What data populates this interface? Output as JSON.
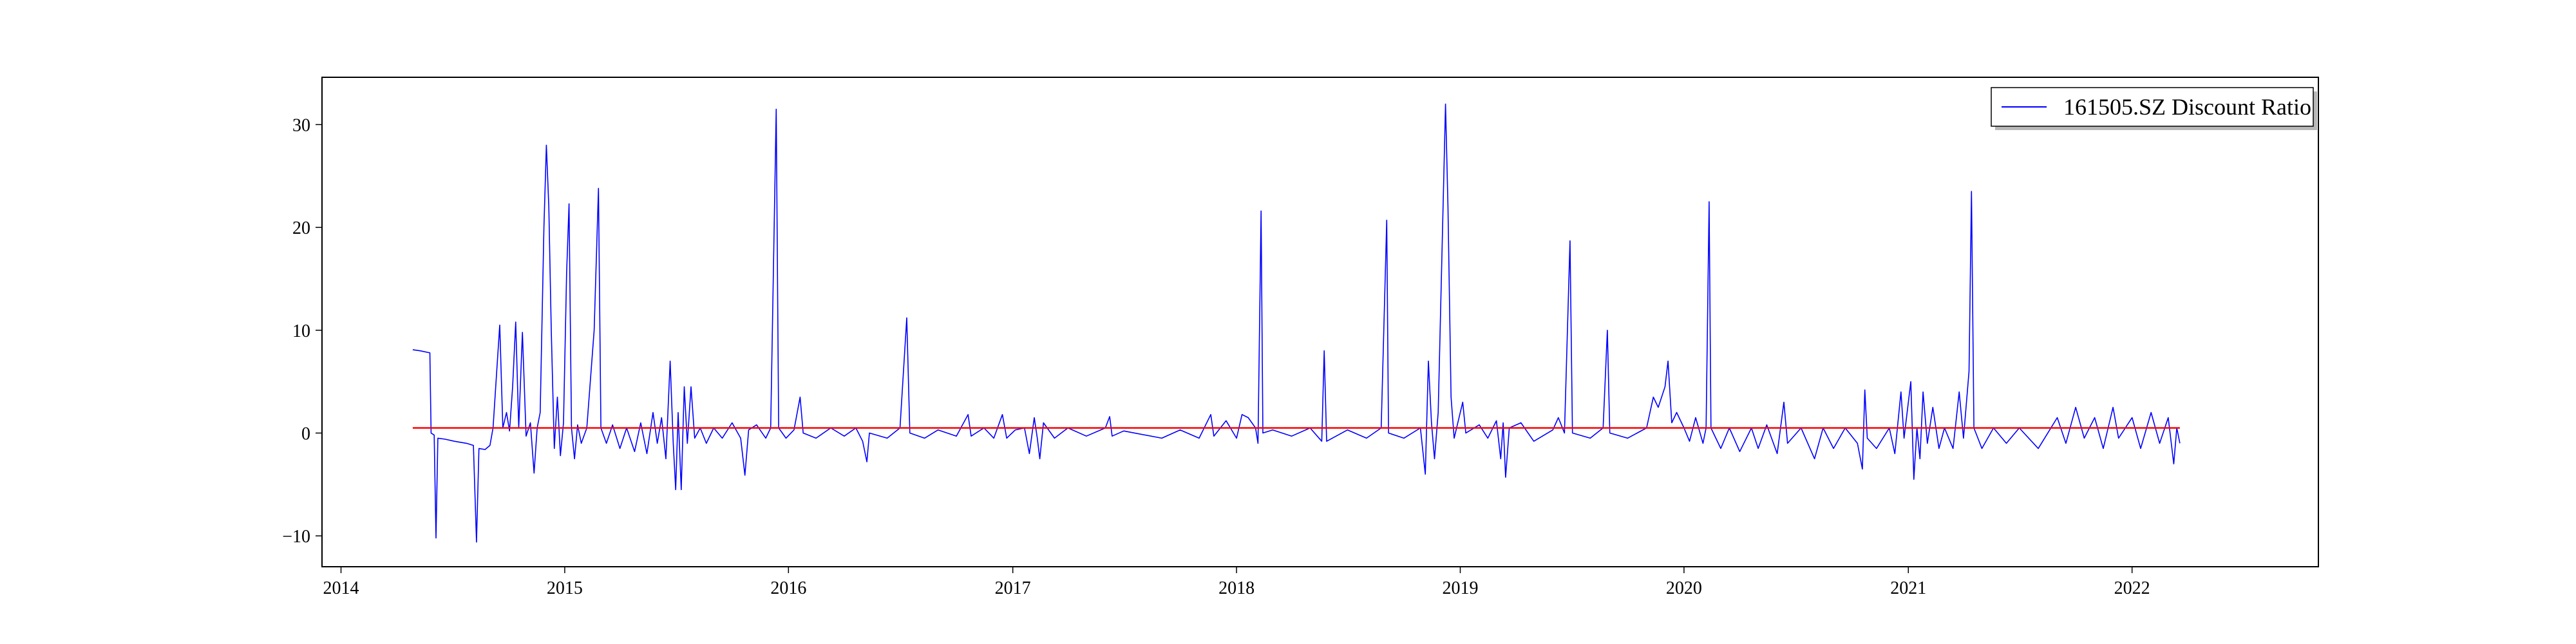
{
  "chart_data": {
    "type": "line",
    "title": "",
    "xlabel": "",
    "ylabel": "",
    "xlim": [
      "2013-12-01",
      "2022-11-01"
    ],
    "ylim": [
      -13,
      34.6
    ],
    "x_ticks": [
      "2014",
      "2015",
      "2016",
      "2017",
      "2018",
      "2019",
      "2020",
      "2021",
      "2022"
    ],
    "y_ticks": [
      -10,
      0,
      10,
      20,
      30
    ],
    "grid": false,
    "legend_position": "top-right",
    "series": [
      {
        "name": "161505.SZ Discount Ratio",
        "color": "#0000ff",
        "points": [
          [
            "2014-04-28",
            8.1
          ],
          [
            "2014-05-10",
            8.0
          ],
          [
            "2014-05-26",
            7.8
          ],
          [
            "2014-05-28",
            0.0
          ],
          [
            "2014-06-02",
            -0.2
          ],
          [
            "2014-06-05",
            -10.2
          ],
          [
            "2014-06-08",
            -0.5
          ],
          [
            "2014-06-20",
            -0.6
          ],
          [
            "2014-07-05",
            -0.8
          ],
          [
            "2014-07-25",
            -1.0
          ],
          [
            "2014-08-05",
            -1.2
          ],
          [
            "2014-08-10",
            -10.6
          ],
          [
            "2014-08-14",
            -1.5
          ],
          [
            "2014-08-24",
            -1.6
          ],
          [
            "2014-09-01",
            -1.2
          ],
          [
            "2014-09-06",
            0.5
          ],
          [
            "2014-09-12",
            6.0
          ],
          [
            "2014-09-17",
            10.5
          ],
          [
            "2014-09-22",
            0.5
          ],
          [
            "2014-09-28",
            2.0
          ],
          [
            "2014-10-03",
            0.2
          ],
          [
            "2014-10-08",
            4.5
          ],
          [
            "2014-10-13",
            10.8
          ],
          [
            "2014-10-18",
            0.5
          ],
          [
            "2014-10-24",
            9.8
          ],
          [
            "2014-10-30",
            -0.3
          ],
          [
            "2014-11-06",
            1.0
          ],
          [
            "2014-11-12",
            -3.9
          ],
          [
            "2014-11-17",
            0.5
          ],
          [
            "2014-11-22",
            2.0
          ],
          [
            "2014-11-28",
            20.0
          ],
          [
            "2014-12-02",
            28.0
          ],
          [
            "2014-12-06",
            22.0
          ],
          [
            "2014-12-10",
            10.0
          ],
          [
            "2014-12-15",
            -1.5
          ],
          [
            "2014-12-20",
            3.5
          ],
          [
            "2014-12-25",
            -2.2
          ],
          [
            "2014-12-30",
            1.0
          ],
          [
            "2015-01-04",
            15.5
          ],
          [
            "2015-01-08",
            22.3
          ],
          [
            "2015-01-12",
            0.5
          ],
          [
            "2015-01-17",
            -2.5
          ],
          [
            "2015-01-22",
            0.8
          ],
          [
            "2015-01-28",
            -1.0
          ],
          [
            "2015-02-06",
            0.5
          ],
          [
            "2015-02-18",
            10.0
          ],
          [
            "2015-02-25",
            23.8
          ],
          [
            "2015-03-01",
            0.5
          ],
          [
            "2015-03-10",
            -1.0
          ],
          [
            "2015-03-20",
            0.8
          ],
          [
            "2015-04-01",
            -1.5
          ],
          [
            "2015-04-12",
            0.5
          ],
          [
            "2015-04-25",
            -1.8
          ],
          [
            "2015-05-05",
            1.0
          ],
          [
            "2015-05-15",
            -2.0
          ],
          [
            "2015-05-25",
            2.0
          ],
          [
            "2015-06-01",
            -1.0
          ],
          [
            "2015-06-08",
            1.5
          ],
          [
            "2015-06-15",
            -2.5
          ],
          [
            "2015-06-22",
            7.0
          ],
          [
            "2015-06-27",
            -1.0
          ],
          [
            "2015-07-01",
            -5.5
          ],
          [
            "2015-07-05",
            2.0
          ],
          [
            "2015-07-10",
            -5.5
          ],
          [
            "2015-07-15",
            4.5
          ],
          [
            "2015-07-20",
            -1.0
          ],
          [
            "2015-07-26",
            4.5
          ],
          [
            "2015-08-01",
            -0.5
          ],
          [
            "2015-08-10",
            0.5
          ],
          [
            "2015-08-20",
            -1.0
          ],
          [
            "2015-09-01",
            0.5
          ],
          [
            "2015-09-15",
            -0.5
          ],
          [
            "2015-10-01",
            1.0
          ],
          [
            "2015-10-15",
            -0.5
          ],
          [
            "2015-10-22",
            -4.1
          ],
          [
            "2015-10-28",
            0.3
          ],
          [
            "2015-11-10",
            0.8
          ],
          [
            "2015-11-25",
            -0.5
          ],
          [
            "2015-12-03",
            0.5
          ],
          [
            "2015-12-12",
            31.5
          ],
          [
            "2015-12-16",
            0.5
          ],
          [
            "2015-12-28",
            -0.5
          ],
          [
            "2016-01-10",
            0.3
          ],
          [
            "2016-01-20",
            3.5
          ],
          [
            "2016-01-25",
            0.0
          ],
          [
            "2016-02-15",
            -0.5
          ],
          [
            "2016-03-10",
            0.5
          ],
          [
            "2016-04-01",
            -0.3
          ],
          [
            "2016-04-20",
            0.5
          ],
          [
            "2016-05-01",
            -0.8
          ],
          [
            "2016-05-08",
            -2.8
          ],
          [
            "2016-05-12",
            0.0
          ],
          [
            "2016-06-10",
            -0.5
          ],
          [
            "2016-07-01",
            0.5
          ],
          [
            "2016-07-12",
            11.2
          ],
          [
            "2016-07-17",
            0.0
          ],
          [
            "2016-08-10",
            -0.5
          ],
          [
            "2016-09-01",
            0.3
          ],
          [
            "2016-10-01",
            -0.3
          ],
          [
            "2016-10-20",
            1.8
          ],
          [
            "2016-10-25",
            -0.3
          ],
          [
            "2016-11-15",
            0.5
          ],
          [
            "2016-12-01",
            -0.5
          ],
          [
            "2016-12-15",
            1.8
          ],
          [
            "2016-12-22",
            -0.5
          ],
          [
            "2017-01-05",
            0.3
          ],
          [
            "2017-01-20",
            0.5
          ],
          [
            "2017-01-28",
            -2.0
          ],
          [
            "2017-02-05",
            1.5
          ],
          [
            "2017-02-10",
            -0.5
          ],
          [
            "2017-02-14",
            -2.5
          ],
          [
            "2017-02-20",
            1.0
          ],
          [
            "2017-03-10",
            -0.5
          ],
          [
            "2017-04-01",
            0.5
          ],
          [
            "2017-05-01",
            -0.3
          ],
          [
            "2017-06-01",
            0.5
          ],
          [
            "2017-06-08",
            1.6
          ],
          [
            "2017-06-12",
            -0.3
          ],
          [
            "2017-07-01",
            0.2
          ],
          [
            "2017-09-01",
            -0.5
          ],
          [
            "2017-10-01",
            0.3
          ],
          [
            "2017-11-01",
            -0.5
          ],
          [
            "2017-11-20",
            1.8
          ],
          [
            "2017-11-25",
            -0.3
          ],
          [
            "2017-12-15",
            1.2
          ],
          [
            "2018-01-01",
            -0.5
          ],
          [
            "2018-01-10",
            1.8
          ],
          [
            "2018-01-20",
            1.5
          ],
          [
            "2018-02-01",
            0.5
          ],
          [
            "2018-02-05",
            -1.0
          ],
          [
            "2018-02-10",
            21.6
          ],
          [
            "2018-02-13",
            0.0
          ],
          [
            "2018-03-01",
            0.3
          ],
          [
            "2018-04-01",
            -0.3
          ],
          [
            "2018-05-01",
            0.5
          ],
          [
            "2018-05-20",
            -0.8
          ],
          [
            "2018-05-24",
            8.0
          ],
          [
            "2018-05-28",
            -0.8
          ],
          [
            "2018-07-01",
            0.3
          ],
          [
            "2018-08-01",
            -0.5
          ],
          [
            "2018-08-25",
            0.5
          ],
          [
            "2018-09-03",
            20.7
          ],
          [
            "2018-09-06",
            0.0
          ],
          [
            "2018-10-01",
            -0.5
          ],
          [
            "2018-10-28",
            0.5
          ],
          [
            "2018-11-05",
            -4.0
          ],
          [
            "2018-11-10",
            7.0
          ],
          [
            "2018-11-15",
            1.0
          ],
          [
            "2018-11-20",
            -2.5
          ],
          [
            "2018-11-26",
            2.0
          ],
          [
            "2018-12-08",
            32.0
          ],
          [
            "2018-12-12",
            22.0
          ],
          [
            "2018-12-17",
            3.5
          ],
          [
            "2018-12-22",
            -0.5
          ],
          [
            "2019-01-05",
            3.0
          ],
          [
            "2019-01-10",
            0.0
          ],
          [
            "2019-02-01",
            0.8
          ],
          [
            "2019-02-15",
            -0.5
          ],
          [
            "2019-03-01",
            1.2
          ],
          [
            "2019-03-08",
            -2.5
          ],
          [
            "2019-03-12",
            1.0
          ],
          [
            "2019-03-16",
            -4.3
          ],
          [
            "2019-03-22",
            0.5
          ],
          [
            "2019-04-10",
            1.0
          ],
          [
            "2019-05-01",
            -0.8
          ],
          [
            "2019-06-01",
            0.3
          ],
          [
            "2019-06-10",
            1.5
          ],
          [
            "2019-06-20",
            0.0
          ],
          [
            "2019-06-29",
            18.7
          ],
          [
            "2019-07-03",
            0.0
          ],
          [
            "2019-08-01",
            -0.5
          ],
          [
            "2019-08-22",
            0.5
          ],
          [
            "2019-08-29",
            10.0
          ],
          [
            "2019-09-02",
            0.0
          ],
          [
            "2019-10-01",
            -0.5
          ],
          [
            "2019-11-01",
            0.5
          ],
          [
            "2019-11-12",
            3.5
          ],
          [
            "2019-11-20",
            2.5
          ],
          [
            "2019-12-01",
            4.5
          ],
          [
            "2019-12-06",
            7.0
          ],
          [
            "2019-12-12",
            1.0
          ],
          [
            "2019-12-20",
            2.0
          ],
          [
            "2020-01-01",
            0.5
          ],
          [
            "2020-01-10",
            -0.8
          ],
          [
            "2020-01-20",
            1.5
          ],
          [
            "2020-02-01",
            -1.0
          ],
          [
            "2020-02-06",
            0.5
          ],
          [
            "2020-02-11",
            22.5
          ],
          [
            "2020-02-14",
            0.5
          ],
          [
            "2020-03-01",
            -1.5
          ],
          [
            "2020-03-15",
            0.5
          ],
          [
            "2020-04-01",
            -1.8
          ],
          [
            "2020-04-20",
            0.5
          ],
          [
            "2020-05-01",
            -1.5
          ],
          [
            "2020-05-15",
            0.8
          ],
          [
            "2020-06-01",
            -2.0
          ],
          [
            "2020-06-12",
            3.0
          ],
          [
            "2020-06-18",
            -1.0
          ],
          [
            "2020-07-10",
            0.5
          ],
          [
            "2020-08-01",
            -2.5
          ],
          [
            "2020-08-15",
            0.5
          ],
          [
            "2020-09-01",
            -1.5
          ],
          [
            "2020-09-20",
            0.5
          ],
          [
            "2020-10-10",
            -1.0
          ],
          [
            "2020-10-18",
            -3.5
          ],
          [
            "2020-10-22",
            4.2
          ],
          [
            "2020-10-26",
            -0.5
          ],
          [
            "2020-11-10",
            -1.5
          ],
          [
            "2020-12-01",
            0.5
          ],
          [
            "2020-12-10",
            -2.0
          ],
          [
            "2020-12-20",
            4.0
          ],
          [
            "2020-12-25",
            -0.5
          ],
          [
            "2021-01-05",
            5.0
          ],
          [
            "2021-01-10",
            -4.5
          ],
          [
            "2021-01-15",
            0.5
          ],
          [
            "2021-01-20",
            -2.5
          ],
          [
            "2021-01-25",
            4.0
          ],
          [
            "2021-02-01",
            -1.0
          ],
          [
            "2021-02-10",
            2.5
          ],
          [
            "2021-02-20",
            -1.5
          ],
          [
            "2021-03-01",
            0.5
          ],
          [
            "2021-03-15",
            -1.5
          ],
          [
            "2021-03-25",
            4.0
          ],
          [
            "2021-04-01",
            -0.5
          ],
          [
            "2021-04-10",
            6.0
          ],
          [
            "2021-04-14",
            23.5
          ],
          [
            "2021-04-18",
            0.5
          ],
          [
            "2021-05-01",
            -1.5
          ],
          [
            "2021-05-20",
            0.5
          ],
          [
            "2021-06-10",
            -1.0
          ],
          [
            "2021-07-01",
            0.5
          ],
          [
            "2021-08-01",
            -1.5
          ],
          [
            "2021-09-01",
            1.5
          ],
          [
            "2021-09-15",
            -1.0
          ],
          [
            "2021-10-01",
            2.5
          ],
          [
            "2021-10-15",
            -0.5
          ],
          [
            "2021-11-01",
            1.5
          ],
          [
            "2021-11-15",
            -1.5
          ],
          [
            "2021-12-01",
            2.5
          ],
          [
            "2021-12-10",
            -0.5
          ],
          [
            "2022-01-01",
            1.5
          ],
          [
            "2022-01-15",
            -1.5
          ],
          [
            "2022-02-01",
            2.0
          ],
          [
            "2022-02-15",
            -1.0
          ],
          [
            "2022-03-01",
            1.5
          ],
          [
            "2022-03-10",
            -3.0
          ],
          [
            "2022-03-15",
            0.5
          ],
          [
            "2022-03-20",
            -1.0
          ]
        ]
      },
      {
        "name": "",
        "color": "#ff0000",
        "points": [
          [
            "2014-04-28",
            0.5
          ],
          [
            "2022-03-20",
            0.5
          ]
        ]
      }
    ]
  }
}
